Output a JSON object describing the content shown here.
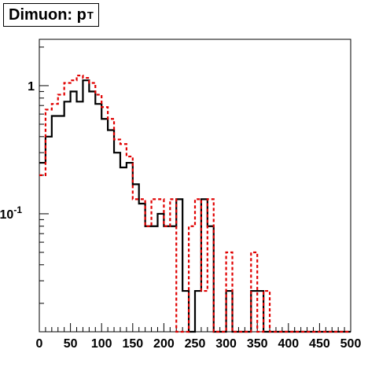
{
  "chart_data": {
    "type": "histogram-step",
    "title": {
      "text": "Dimuon: p",
      "subscript": "T"
    },
    "xlabel": "",
    "ylabel": "",
    "xlim": [
      0,
      500
    ],
    "y_scale": "log",
    "ylim": [
      0.012,
      2.3
    ],
    "x_ticks": [
      0,
      50,
      100,
      150,
      200,
      250,
      300,
      350,
      400,
      450,
      500
    ],
    "y_ticks": [
      {
        "value": 1,
        "label": "1"
      },
      {
        "value": 0.1,
        "label": "10",
        "exponent": "-1"
      }
    ],
    "grid": false,
    "bin_edges": [
      0,
      10,
      20,
      30,
      40,
      50,
      60,
      70,
      80,
      90,
      100,
      110,
      120,
      130,
      140,
      150,
      160,
      170,
      180,
      190,
      200,
      210,
      220,
      230,
      240,
      250,
      260,
      270,
      280,
      290,
      300,
      310,
      320,
      330,
      340,
      350,
      360,
      370,
      380,
      390,
      400,
      410,
      420,
      430,
      440,
      450,
      460,
      470,
      480,
      490,
      500
    ],
    "series": [
      {
        "color": "#000000",
        "style": "solid",
        "values": [
          0.25,
          0.4,
          0.58,
          0.58,
          0.75,
          0.9,
          0.75,
          1.1,
          0.9,
          0.72,
          0.55,
          0.45,
          0.3,
          0.23,
          0.25,
          0.17,
          0.12,
          0.08,
          0.08,
          0.1,
          0.08,
          0.08,
          0.13,
          0.025,
          0,
          0.025,
          0.13,
          0.08,
          0,
          0,
          0.025,
          0,
          0,
          0,
          0.025,
          0.025,
          0,
          0,
          0,
          0,
          0,
          0,
          0,
          0,
          0,
          0,
          0,
          0,
          0,
          0
        ]
      },
      {
        "color": "#e00000",
        "style": "dashed",
        "values": [
          0.2,
          0.65,
          0.72,
          0.85,
          1.05,
          1.1,
          1.2,
          1.15,
          1.05,
          0.85,
          0.68,
          0.55,
          0.38,
          0.35,
          0.28,
          0.13,
          0.13,
          0.08,
          0.13,
          0.13,
          0.08,
          0.13,
          0,
          0,
          0.08,
          0.13,
          0.025,
          0.13,
          0,
          0,
          0.05,
          0,
          0,
          0,
          0.05,
          0,
          0.025,
          0,
          0,
          0,
          0,
          0,
          0,
          0,
          0,
          0,
          0,
          0,
          0,
          0
        ]
      }
    ]
  }
}
